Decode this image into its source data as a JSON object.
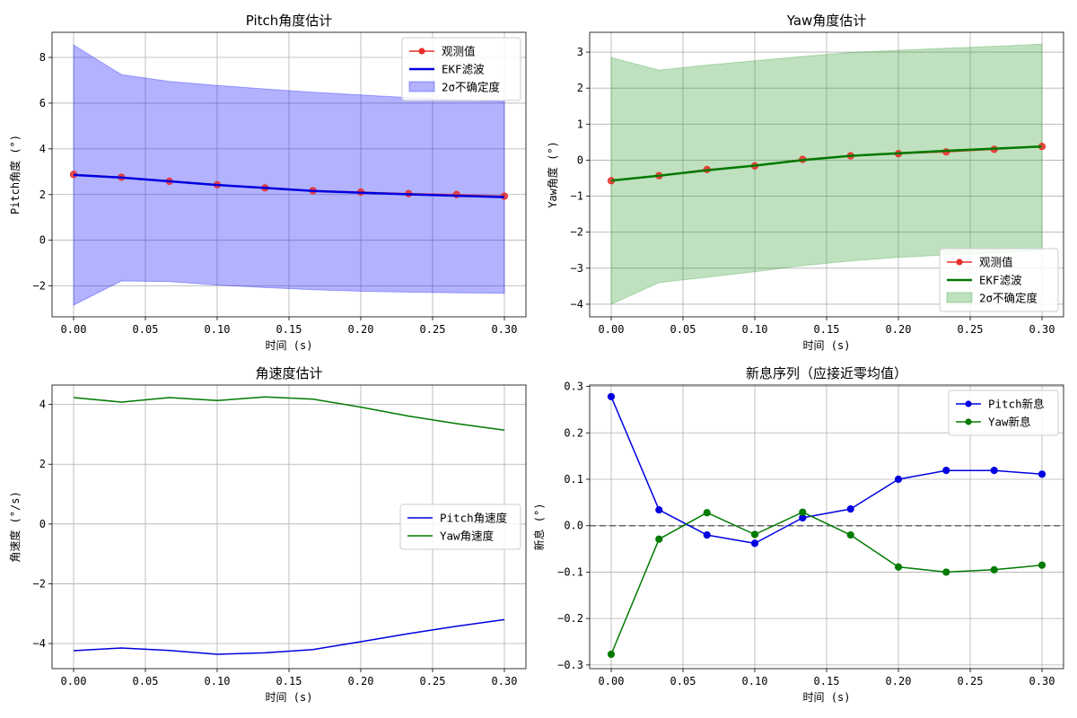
{
  "chart_data": [
    {
      "id": "pitch",
      "type": "line",
      "title": "Pitch角度估计",
      "xlabel": "时间 (s)",
      "ylabel": "Pitch角度 (°)",
      "xlim": [
        -0.015,
        0.315
      ],
      "ylim": [
        -3.35,
        9.1
      ],
      "xticks": [
        0.0,
        0.05,
        0.1,
        0.15,
        0.2,
        0.25,
        0.3
      ],
      "xtick_labels": [
        "0.00",
        "0.05",
        "0.10",
        "0.15",
        "0.20",
        "0.25",
        "0.30"
      ],
      "yticks": [
        -2,
        0,
        2,
        4,
        6,
        8
      ],
      "ytick_labels": [
        "−2",
        "0",
        "2",
        "4",
        "6",
        "8"
      ],
      "grid": true,
      "legend_position": "top-right",
      "x": [
        0.0,
        0.0333,
        0.0667,
        0.1,
        0.1333,
        0.1667,
        0.2,
        0.2333,
        0.2667,
        0.3
      ],
      "series": [
        {
          "name": "观测值",
          "kind": "line-marker",
          "color": "#e8302e",
          "values": [
            2.88,
            2.76,
            2.58,
            2.43,
            2.29,
            2.17,
            2.11,
            2.04,
            2.0,
            1.93
          ]
        },
        {
          "name": "EKF滤波",
          "kind": "line",
          "color": "#0000e0",
          "values": [
            2.86,
            2.74,
            2.58,
            2.42,
            2.29,
            2.16,
            2.08,
            2.01,
            1.95,
            1.89
          ]
        }
      ],
      "band": {
        "name": "2σ不确定度",
        "color": "#0000ff",
        "upper": [
          8.55,
          7.25,
          6.95,
          6.78,
          6.62,
          6.48,
          6.36,
          6.24,
          6.15,
          6.07
        ],
        "lower": [
          -2.84,
          -1.78,
          -1.81,
          -1.96,
          -2.07,
          -2.16,
          -2.23,
          -2.27,
          -2.3,
          -2.32
        ]
      }
    },
    {
      "id": "yaw",
      "type": "line",
      "title": "Yaw角度估计",
      "xlabel": "时间 (s)",
      "ylabel": "Yaw角度 (°)",
      "xlim": [
        -0.015,
        0.315
      ],
      "ylim": [
        -4.35,
        3.55
      ],
      "xticks": [
        0.0,
        0.05,
        0.1,
        0.15,
        0.2,
        0.25,
        0.3
      ],
      "xtick_labels": [
        "0.00",
        "0.05",
        "0.10",
        "0.15",
        "0.20",
        "0.25",
        "0.30"
      ],
      "yticks": [
        -4,
        -3,
        -2,
        -1,
        0,
        1,
        2,
        3
      ],
      "ytick_labels": [
        "−4",
        "−3",
        "−2",
        "−1",
        "0",
        "1",
        "2",
        "3"
      ],
      "grid": true,
      "legend_position": "lower-right",
      "x": [
        0.0,
        0.0333,
        0.0667,
        0.1,
        0.1333,
        0.1667,
        0.2,
        0.2333,
        0.2667,
        0.3
      ],
      "series": [
        {
          "name": "观测值",
          "kind": "line-marker",
          "color": "#e8302e",
          "values": [
            -0.57,
            -0.43,
            -0.26,
            -0.16,
            0.02,
            0.12,
            0.18,
            0.23,
            0.3,
            0.38
          ]
        },
        {
          "name": "EKF滤波",
          "kind": "line",
          "color": "#007a00",
          "values": [
            -0.57,
            -0.43,
            -0.28,
            -0.15,
            0.0,
            0.12,
            0.19,
            0.26,
            0.32,
            0.38
          ]
        }
      ],
      "band": {
        "name": "2σ不确定度",
        "color": "#2a9a2a",
        "upper": [
          2.85,
          2.5,
          2.64,
          2.76,
          2.88,
          2.99,
          3.05,
          3.11,
          3.16,
          3.22
        ],
        "lower": [
          -4.0,
          -3.4,
          -3.25,
          -3.1,
          -2.93,
          -2.8,
          -2.7,
          -2.63,
          -2.58,
          -2.5
        ]
      }
    },
    {
      "id": "angvel",
      "type": "line",
      "title": "角速度估计",
      "xlabel": "时间 (s)",
      "ylabel": "角速度 (°/s)",
      "xlim": [
        -0.015,
        0.315
      ],
      "ylim": [
        -4.84,
        4.65
      ],
      "xticks": [
        0.0,
        0.05,
        0.1,
        0.15,
        0.2,
        0.25,
        0.3
      ],
      "xtick_labels": [
        "0.00",
        "0.05",
        "0.10",
        "0.15",
        "0.20",
        "0.25",
        "0.30"
      ],
      "yticks": [
        -4,
        -2,
        0,
        2,
        4
      ],
      "ytick_labels": [
        "−4",
        "−2",
        "0",
        "2",
        "4"
      ],
      "grid": true,
      "legend_position": "center-right",
      "x": [
        0.0,
        0.0333,
        0.0667,
        0.1,
        0.1333,
        0.1667,
        0.2,
        0.2333,
        0.2667,
        0.3
      ],
      "series": [
        {
          "name": "Pitch角速度",
          "kind": "line",
          "color": "#0000e0",
          "values": [
            -4.24,
            -4.15,
            -4.23,
            -4.36,
            -4.31,
            -4.2,
            -3.94,
            -3.67,
            -3.42,
            -3.2
          ]
        },
        {
          "name": "Yaw角速度",
          "kind": "line",
          "color": "#007a00",
          "values": [
            4.23,
            4.08,
            4.23,
            4.13,
            4.25,
            4.18,
            3.91,
            3.61,
            3.36,
            3.14
          ]
        }
      ]
    },
    {
      "id": "innov",
      "type": "line",
      "title": "新息序列（应接近零均值）",
      "xlabel": "时间 (s)",
      "ylabel": "新息 (°)",
      "xlim": [
        -0.015,
        0.315
      ],
      "ylim": [
        -0.308,
        0.303
      ],
      "xticks": [
        0.0,
        0.05,
        0.1,
        0.15,
        0.2,
        0.25,
        0.3
      ],
      "xtick_labels": [
        "0.00",
        "0.05",
        "0.10",
        "0.15",
        "0.20",
        "0.25",
        "0.30"
      ],
      "yticks": [
        -0.3,
        -0.2,
        -0.1,
        0.0,
        0.1,
        0.2,
        0.3
      ],
      "ytick_labels": [
        "−0.3",
        "−0.2",
        "−0.1",
        "0.0",
        "0.1",
        "0.2",
        "0.3"
      ],
      "grid": true,
      "legend_position": "top-right",
      "zero_line": true,
      "x": [
        0.0,
        0.0333,
        0.0667,
        0.1,
        0.1333,
        0.1667,
        0.2,
        0.2333,
        0.2667,
        0.3
      ],
      "series": [
        {
          "name": "Pitch新息",
          "kind": "line-marker",
          "color": "#0000e0",
          "values": [
            0.278,
            0.034,
            -0.02,
            -0.038,
            0.017,
            0.036,
            0.1,
            0.119,
            0.119,
            0.111
          ]
        },
        {
          "name": "Yaw新息",
          "kind": "line-marker",
          "color": "#007a00",
          "values": [
            -0.277,
            -0.029,
            0.028,
            -0.019,
            0.029,
            -0.02,
            -0.089,
            -0.1,
            -0.095,
            -0.085
          ]
        }
      ]
    }
  ]
}
